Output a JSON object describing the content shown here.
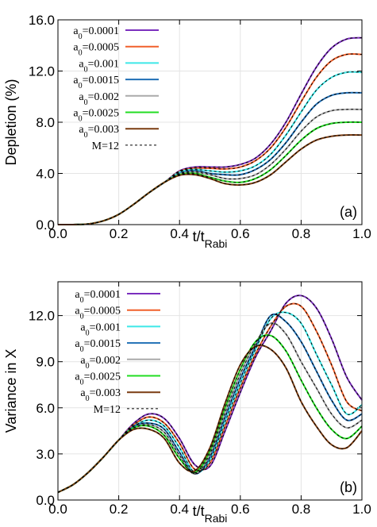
{
  "chart_data": [
    {
      "type": "line",
      "y_label": "Depletion (%)",
      "x_label": "t/t",
      "x_label_sub": "Rabi",
      "annotation": "(a)",
      "x": [
        0,
        0.05,
        0.1,
        0.15,
        0.2,
        0.25,
        0.3,
        0.35,
        0.4,
        0.45,
        0.5,
        0.55,
        0.6,
        0.65,
        0.7,
        0.75,
        0.8,
        0.85,
        0.9,
        0.95,
        1.0
      ],
      "xlim": [
        0,
        1
      ],
      "xticks": [
        {
          "value": 0,
          "label": "0.0"
        },
        {
          "value": 0.2,
          "label": "0.2"
        },
        {
          "value": 0.4,
          "label": "0.4"
        },
        {
          "value": 0.6,
          "label": "0.6"
        },
        {
          "value": 0.8,
          "label": "0.8"
        },
        {
          "value": 1,
          "label": "1.0"
        }
      ],
      "ylim": [
        0,
        16
      ],
      "yticks": [
        {
          "value": 0,
          "label": "0.0"
        },
        {
          "value": 4,
          "label": "4.0"
        },
        {
          "value": 8,
          "label": "8.0"
        },
        {
          "value": 12,
          "label": "12.0"
        },
        {
          "value": 16,
          "label": "16.0"
        }
      ],
      "grid": true,
      "legend": "upper left",
      "series": [
        {
          "name": "a0=0.0001",
          "color": "#7b2fbe",
          "values": [
            0,
            0,
            0.05,
            0.3,
            0.8,
            1.6,
            2.5,
            3.3,
            4.2,
            4.5,
            4.5,
            4.5,
            4.7,
            5.2,
            6.3,
            8.0,
            10.2,
            12.3,
            13.8,
            14.5,
            14.6
          ]
        },
        {
          "name": "a0=0.0005",
          "color": "#f0602b",
          "values": [
            0,
            0,
            0.05,
            0.3,
            0.8,
            1.6,
            2.5,
            3.3,
            4.15,
            4.4,
            4.4,
            4.35,
            4.5,
            5.0,
            6.0,
            7.6,
            9.6,
            11.5,
            12.8,
            13.3,
            13.3
          ]
        },
        {
          "name": "a0=0.001",
          "color": "#3ee8e8",
          "values": [
            0,
            0,
            0.05,
            0.3,
            0.8,
            1.6,
            2.5,
            3.3,
            4.1,
            4.3,
            4.2,
            4.1,
            4.2,
            4.6,
            5.5,
            7.0,
            8.8,
            10.5,
            11.5,
            11.9,
            11.9
          ]
        },
        {
          "name": "a0=0.0015",
          "color": "#1f6fb5",
          "values": [
            0,
            0,
            0.05,
            0.3,
            0.8,
            1.6,
            2.5,
            3.3,
            4.0,
            4.2,
            4.0,
            3.9,
            3.9,
            4.3,
            5.1,
            6.4,
            8.0,
            9.4,
            10.1,
            10.3,
            10.3
          ]
        },
        {
          "name": "a0=0.002",
          "color": "#aaaaaa",
          "values": [
            0,
            0,
            0.05,
            0.3,
            0.8,
            1.6,
            2.5,
            3.3,
            3.95,
            4.1,
            3.9,
            3.6,
            3.6,
            3.9,
            4.7,
            5.9,
            7.3,
            8.4,
            8.9,
            9.0,
            9.0
          ]
        },
        {
          "name": "a0=0.0025",
          "color": "#22dd22",
          "values": [
            0,
            0,
            0.05,
            0.3,
            0.8,
            1.6,
            2.5,
            3.3,
            3.9,
            4.0,
            3.7,
            3.4,
            3.3,
            3.6,
            4.3,
            5.4,
            6.6,
            7.5,
            7.9,
            8.0,
            8.0
          ]
        },
        {
          "name": "a0=0.003",
          "color": "#7a3b10",
          "values": [
            0,
            0,
            0.05,
            0.3,
            0.8,
            1.6,
            2.5,
            3.3,
            3.85,
            3.9,
            3.6,
            3.2,
            3.1,
            3.3,
            3.9,
            4.9,
            5.9,
            6.6,
            6.9,
            7.0,
            7.0
          ]
        },
        {
          "name": "M=12",
          "color": "#000000",
          "dashed": true
        }
      ]
    },
    {
      "type": "line",
      "y_label": "Variance in X",
      "x_label": "t/t",
      "x_label_sub": "Rabi",
      "annotation": "(b)",
      "x": [
        0,
        0.05,
        0.1,
        0.15,
        0.2,
        0.25,
        0.3,
        0.35,
        0.4,
        0.45,
        0.5,
        0.55,
        0.6,
        0.65,
        0.7,
        0.75,
        0.8,
        0.85,
        0.9,
        0.95,
        1.0
      ],
      "xlim": [
        0,
        1
      ],
      "xticks": [
        {
          "value": 0,
          "label": "0.0"
        },
        {
          "value": 0.2,
          "label": "0.2"
        },
        {
          "value": 0.4,
          "label": "0.4"
        },
        {
          "value": 0.6,
          "label": "0.6"
        },
        {
          "value": 0.8,
          "label": "0.8"
        },
        {
          "value": 1,
          "label": "1.0"
        }
      ],
      "ylim": [
        0,
        14.2
      ],
      "yticks": [
        {
          "value": 0,
          "label": "0.0"
        },
        {
          "value": 3,
          "label": "3.0"
        },
        {
          "value": 6,
          "label": "6.0"
        },
        {
          "value": 9,
          "label": "9.0"
        },
        {
          "value": 12,
          "label": "12.0"
        }
      ],
      "grid": true,
      "legend": "upper left",
      "series": [
        {
          "name": "a0=0.0001",
          "color": "#7b2fbe",
          "values": [
            0.5,
            1.0,
            1.8,
            2.8,
            3.9,
            5.0,
            5.6,
            5.3,
            4.0,
            2.3,
            2.2,
            4.5,
            7.0,
            9.3,
            11.0,
            12.8,
            13.3,
            12.5,
            10.5,
            8.0,
            6.5
          ]
        },
        {
          "name": "a0=0.0005",
          "color": "#f0602b",
          "values": [
            0.5,
            1.0,
            1.8,
            2.8,
            3.9,
            4.9,
            5.4,
            5.0,
            3.7,
            2.0,
            2.4,
            4.8,
            7.3,
            9.5,
            11.3,
            12.6,
            12.6,
            11.0,
            8.8,
            6.4,
            5.8
          ]
        },
        {
          "name": "a0=0.001",
          "color": "#3ee8e8",
          "values": [
            0.5,
            1.0,
            1.8,
            2.8,
            3.9,
            4.8,
            5.2,
            4.8,
            3.4,
            1.8,
            2.6,
            5.1,
            7.6,
            9.8,
            11.8,
            12.2,
            11.5,
            9.5,
            7.5,
            5.6,
            6.2
          ]
        },
        {
          "name": "a0=0.0015",
          "color": "#1f6fb5",
          "values": [
            0.5,
            1.0,
            1.8,
            2.8,
            3.9,
            4.8,
            5.0,
            4.6,
            3.1,
            1.7,
            2.8,
            5.4,
            7.9,
            10.0,
            12.0,
            11.6,
            10.3,
            8.4,
            6.5,
            5.2,
            5.6
          ]
        },
        {
          "name": "a0=0.002",
          "color": "#aaaaaa",
          "values": [
            0.5,
            1.0,
            1.8,
            2.8,
            3.9,
            4.7,
            4.9,
            4.4,
            2.9,
            1.7,
            3.0,
            5.7,
            8.2,
            10.2,
            11.5,
            10.8,
            9.0,
            7.3,
            5.6,
            4.7,
            5.2
          ]
        },
        {
          "name": "a0=0.0025",
          "color": "#22dd22",
          "values": [
            0.5,
            1.0,
            1.8,
            2.8,
            3.9,
            4.7,
            4.8,
            4.2,
            2.7,
            1.8,
            3.2,
            6.0,
            8.5,
            10.3,
            10.7,
            9.7,
            7.8,
            6.0,
            4.6,
            4.0,
            4.8
          ]
        },
        {
          "name": "a0=0.003",
          "color": "#7a3b10",
          "values": [
            0.5,
            1.0,
            1.8,
            2.8,
            3.9,
            4.6,
            4.6,
            4.0,
            2.4,
            1.9,
            3.4,
            6.3,
            8.8,
            10.0,
            9.8,
            8.6,
            6.4,
            4.8,
            3.6,
            3.4,
            4.5
          ]
        },
        {
          "name": "M=12",
          "color": "#000000",
          "dashed": true
        }
      ]
    }
  ]
}
